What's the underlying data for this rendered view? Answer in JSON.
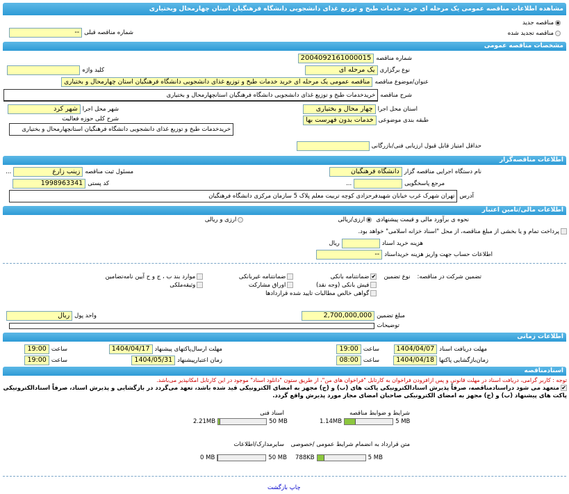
{
  "title": "مشاهده اطلاعات مناقصه عمومی یک مرحله ای خرید خدمات طبخ و توزیع غذای دانشجویی دانشگاه فرهنگیان استان چهارمحال وبختیاری",
  "type": {
    "new_label": "مناقصه جدید",
    "renewed_label": "مناقصه تجدید شده",
    "selected": "new",
    "prev_number_label": "شماره مناقصه قبلی",
    "prev_number": "--"
  },
  "general": {
    "header": "مشخصات مناقصه عمومی",
    "number_label": "شماره مناقصه",
    "number": "2004092161000015",
    "holding_label": "نوع برگزاری",
    "holding": "یک مرحله ای",
    "keyword_label": "کلید واژه",
    "keyword": "",
    "subject_label": "عنوان/موضوع مناقصه",
    "subject": "مناقصه عمومی یک مرحله ای خرید خدمات طبخ و توزیع غذای دانشجویی دانشگاه فرهنگیان استان چهارمحال و بختیاری",
    "desc_label": "شرح مناقصه",
    "desc": "خریدخدمات طبخ و توزیع غذای دانشجویی دانشگاه فرهنگیان استانچهارمحال و بختیاری",
    "province_label": "استان محل اجرا",
    "province": "چهار محال و بختیاری",
    "city_label": "شهر محل اجرا",
    "city": "شهر کرد",
    "category_label": "طبقه بندی موضوعی",
    "category": "خدمات بدون فهرست بها",
    "scope_label": "شرح کلی حوزه فعالیت",
    "scope": "خریدخدمات طبخ و توزیع غذای دانشجویی دانشگاه فرهنگیان استانچهارمحال و بختیاری",
    "min_score_label": "حداقل امتیاز قابل قبول ارزیابی فنی/بازرگانی",
    "min_score": ""
  },
  "organizer": {
    "header": "اطلاعات مناقصه‌گزار",
    "org_label": "نام دستگاه اجرایی مناقصه گزار",
    "org": "دانشگاه فرهنگیان",
    "resp_label": "مسئول ثبت مناقصه",
    "resp": "زینب زارع",
    "ref_label": "مرجع پاسخگویی",
    "ref": "",
    "postal_label": "کد پستی",
    "postal": "1998963341",
    "address_label": "آدرس",
    "address": "تهران شهرک غرب خیابان شهیدفرحزادی کوچه تربیت معلم پلاک 5 سازمان مرکزی دانشگاه فرهنگیان",
    "dots": "..."
  },
  "finance": {
    "header": "اطلاعات مالی/تامین اعتبار",
    "estimate_label": "نحوه ی برآورد مالی و قیمت پیشنهادی",
    "opt1": "ارزی/ریالی",
    "opt2": "ارزی و ریالی",
    "treasury_label": "پرداخت تمام و یا بخشی از مبلغ مناقصه، از محل \"اسناد خزانه اسلامی\" خواهد بود.",
    "doc_fee_label": "هزینه خرید اسناد",
    "doc_fee": "",
    "rial": "ریال",
    "account_label": "اطلاعات حساب جهت واریز هزینه خریداسناد",
    "account": "--",
    "guarantee_label": "تضمین شرکت در مناقصه:",
    "guarantee_type_label": "نوع تضمین",
    "g": [
      "ضمانتنامه بانکی",
      "ضمانتنامه غیربانکی",
      "موارد بند ب ، ج و ح آیین نامه‌تضامین",
      "فیش بانکی (وجه نقد)",
      "اوراق مشارکت",
      "وثیقه‌ملکی",
      "گواهی خالص مطالبات تایید شده قراردادها"
    ],
    "amount_label": "مبلغ تضمین",
    "amount": "2,700,000,000",
    "currency_label": "واحد پول",
    "currency": "ریال",
    "notes_label": "توضیحات",
    "notes": ""
  },
  "timing": {
    "header": "اطلاعات زمانی",
    "doc_deadline_label": "مهلت دریافت اسناد",
    "doc_deadline": "1404/04/07",
    "doc_time": "19:00",
    "submit_label": "مهلت ارسال‌پاکتهای پیشنهاد",
    "submit": "1404/04/17",
    "submit_time": "19:00",
    "open_label": "زمان‌بازگشایی پاکتها",
    "open": "1404/04/18",
    "open_time": "08:00",
    "valid_label": "زمان اعتبارپیشنهاد",
    "valid": "1404/05/31",
    "valid_time": "19:00",
    "hour_label": "ساعت"
  },
  "docs": {
    "header": "اسنادمناقصه",
    "note": "توجه : کاربر گرامی، دریافت اسناد در مهلت قانونی و پس ازافزودن فراخوان به کارتابل \"فراخوان های من\"، از طریق ستون \"دانلود اسناد\" موجود در این کارتابل امکانپذیر می‌باشد.",
    "pledge": "متعهد می شود دراسنادمناقصه، صرفاً پذیرش اسنادالکترونیکی پاکت های (ب) و (ج) مجهز به امضای الکترونیکی قید شده باشد، تعهد می‌گردد در بازگشایی و پذیرش اسناد، صرفاً اسنادالکترونیکی پاکت های پیشنهاد (ب) و (ج) مجهز به امضای الکترونیکی صاحبان امضای مجاز مورد پذیرش واقع گردد.",
    "files": [
      {
        "label": "شرایط و ضوابط مناقصه",
        "size": "1.14MB",
        "max": "5 MB",
        "fraction": 0.228
      },
      {
        "label": "اسناد فنی",
        "size": "2.21MB",
        "max": "50 MB",
        "fraction": 0.044
      },
      {
        "label": "متن قرارداد به انضمام شرایط عمومی /خصوصی",
        "size": "788KB",
        "max": "5 MB",
        "fraction": 0.154
      },
      {
        "label": "سایرمدارک/اطلاعات",
        "size": "0 MB",
        "max": "50 MB",
        "fraction": 0
      }
    ]
  },
  "footer": {
    "print": "چاپ",
    "back": "بازگشت"
  },
  "colors": {
    "header": "#3ea6dd",
    "field": "#ffffb0",
    "progress": "#8cc63f",
    "link": "#0000cc"
  }
}
